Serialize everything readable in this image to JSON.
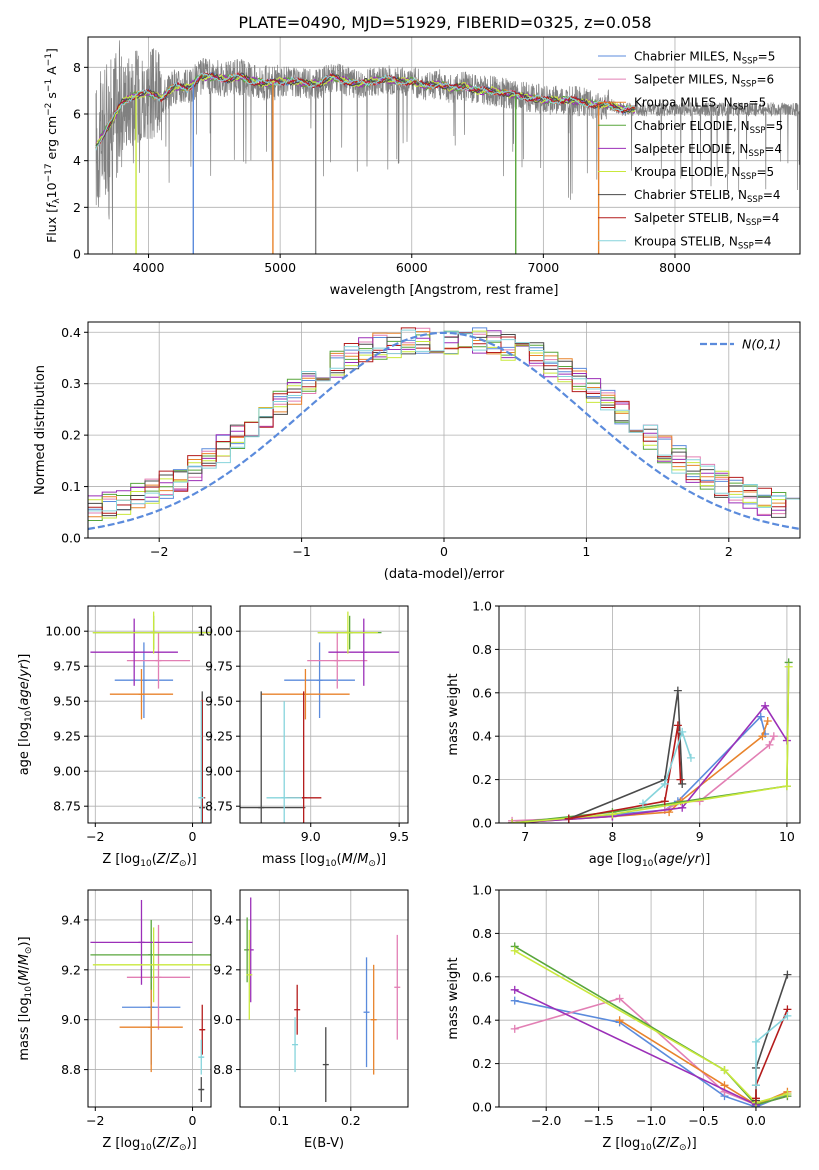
{
  "figure_title": "PLATE=0490, MJD=51929, FIBERID=0325, z=0.058",
  "models": [
    {
      "name": "Chabrier MILES, N$_{SSP}$=5",
      "color": "#5b8bdc"
    },
    {
      "name": "Salpeter MILES, N$_{SSP}$=6",
      "color": "#e27fb4"
    },
    {
      "name": "Kroupa MILES, N$_{SSP}$=5",
      "color": "#e8832c"
    },
    {
      "name": "Chabrier ELODIE, N$_{SSP}$=5",
      "color": "#58a63c"
    },
    {
      "name": "Salpeter ELODIE, N$_{SSP}$=4",
      "color": "#9b2fb8"
    },
    {
      "name": "Kroupa ELODIE, N$_{SSP}$=5",
      "color": "#c9e83c"
    },
    {
      "name": "Chabrier STELIB, N$_{SSP}$=4",
      "color": "#4a4a4a"
    },
    {
      "name": "Salpeter STELIB, N$_{SSP}$=4",
      "color": "#b41c1c"
    },
    {
      "name": "Kroupa STELIB, N$_{SSP}$=4",
      "color": "#86d4dc"
    }
  ],
  "data_color": "#808080",
  "chart_data": [
    {
      "id": "spectrum",
      "type": "line",
      "xlabel": "wavelength [Angstrom, rest frame]",
      "ylabel": "Flux [f_λ 10^-17 erg cm^-2 s^-1 A^-1]",
      "xlim": [
        3540,
        8950
      ],
      "ylim": [
        0,
        9.3
      ],
      "xticks": [
        4000,
        5000,
        6000,
        7000,
        8000
      ],
      "yticks": [
        0,
        2,
        4,
        6,
        8
      ],
      "legend": "upper-right",
      "spectrum_points": [
        [
          3600,
          4.6
        ],
        [
          3700,
          5.5
        ],
        [
          3800,
          6.5
        ],
        [
          3900,
          6.8
        ],
        [
          4000,
          6.9
        ],
        [
          4100,
          6.7
        ],
        [
          4200,
          7.2
        ],
        [
          4300,
          7.1
        ],
        [
          4400,
          7.6
        ],
        [
          4500,
          7.6
        ],
        [
          4600,
          7.5
        ],
        [
          4700,
          7.6
        ],
        [
          4800,
          7.4
        ],
        [
          4900,
          7.3
        ],
        [
          5000,
          7.4
        ],
        [
          5100,
          7.4
        ],
        [
          5200,
          7.3
        ],
        [
          5300,
          7.3
        ],
        [
          5400,
          7.6
        ],
        [
          5500,
          7.4
        ],
        [
          5600,
          7.3
        ],
        [
          5700,
          7.4
        ],
        [
          5800,
          7.5
        ],
        [
          5900,
          7.4
        ],
        [
          6000,
          7.4
        ],
        [
          6100,
          7.2
        ],
        [
          6200,
          7.3
        ],
        [
          6300,
          7.1
        ],
        [
          6400,
          7.2
        ],
        [
          6500,
          7.0
        ],
        [
          6600,
          7.0
        ],
        [
          6700,
          6.9
        ],
        [
          6800,
          6.8
        ],
        [
          6900,
          6.7
        ],
        [
          7000,
          6.6
        ],
        [
          7100,
          6.6
        ],
        [
          7200,
          6.6
        ],
        [
          7300,
          6.5
        ],
        [
          7400,
          6.4
        ],
        [
          7500,
          6.4
        ],
        [
          7600,
          6.2
        ]
      ],
      "model_end_angstrom": 7700,
      "dips_angstrom": [
        3905,
        4340,
        4945,
        5270,
        6790,
        7420
      ]
    },
    {
      "id": "residuals",
      "type": "line",
      "xlabel": "(data-model)/error",
      "ylabel": "Normed distribution",
      "xlim": [
        -2.5,
        2.5
      ],
      "ylim": [
        0,
        0.42
      ],
      "xticks": [
        -2,
        -1,
        0,
        1,
        2
      ],
      "yticks": [
        0.0,
        0.1,
        0.2,
        0.3,
        0.4
      ],
      "legend": "upper-right",
      "gaussian_label": "N(0,1)",
      "gaussian_color": "#5b8bdc",
      "bin_width": 0.1,
      "bins_start": -2.5
    },
    {
      "id": "age-vs-Z",
      "type": "scatter",
      "xlabel": "Z [log10(Z/Z⊙)]",
      "ylabel": "age [log10(age/yr)]",
      "xlim": [
        -2.15,
        0.38
      ],
      "ylim": [
        8.63,
        10.18
      ],
      "xticks": [
        -2,
        0
      ],
      "yticks": [
        8.75,
        9.0,
        9.25,
        9.5,
        9.75,
        10.0
      ],
      "points": [
        {
          "x": -1.0,
          "y": 9.65,
          "xerr": 0.6,
          "yerr": 0.27
        },
        {
          "x": -0.7,
          "y": 9.79,
          "xerr": 0.65,
          "yerr": 0.2
        },
        {
          "x": -1.05,
          "y": 9.55,
          "xerr": 0.65,
          "yerr": 0.18
        },
        {
          "x": -0.8,
          "y": 9.99,
          "xerr": 1.25,
          "yerr": 0.12
        },
        {
          "x": -1.2,
          "y": 9.85,
          "xerr": 0.9,
          "yerr": 0.24
        },
        {
          "x": -0.8,
          "y": 9.99,
          "xerr": 1.25,
          "yerr": 0.15
        },
        {
          "x": 0.2,
          "y": 8.74,
          "xerr": 0.05,
          "yerr": 0.83
        },
        {
          "x": 0.2,
          "y": 8.81,
          "xerr": 0.05,
          "yerr": 0.7
        },
        {
          "x": 0.18,
          "y": 8.81,
          "xerr": 0.05,
          "yerr": 0.69
        }
      ]
    },
    {
      "id": "age-vs-mass",
      "type": "scatter",
      "xlabel": "mass [log10(M/M⊙)]",
      "ylabel": "",
      "xlim": [
        8.6,
        9.55
      ],
      "ylim": [
        8.63,
        10.18
      ],
      "xticks": [
        8.5,
        9.0,
        9.5
      ],
      "yticks": [
        8.75,
        9.0,
        9.25,
        9.5,
        9.75,
        10.0
      ],
      "points": [
        {
          "x": 9.05,
          "y": 9.65,
          "xerr": 0.2,
          "yerr": 0.27
        },
        {
          "x": 9.15,
          "y": 9.79,
          "xerr": 0.17,
          "yerr": 0.2
        },
        {
          "x": 8.97,
          "y": 9.55,
          "xerr": 0.25,
          "yerr": 0.18
        },
        {
          "x": 9.22,
          "y": 9.99,
          "xerr": 0.18,
          "yerr": 0.12
        },
        {
          "x": 9.3,
          "y": 9.85,
          "xerr": 0.2,
          "yerr": 0.24
        },
        {
          "x": 9.21,
          "y": 9.99,
          "xerr": 0.17,
          "yerr": 0.15
        },
        {
          "x": 8.72,
          "y": 8.74,
          "xerr": 0.25,
          "yerr": 0.83
        },
        {
          "x": 8.96,
          "y": 8.81,
          "xerr": 0.1,
          "yerr": 0.76
        },
        {
          "x": 8.85,
          "y": 8.81,
          "xerr": 0.1,
          "yerr": 0.69
        }
      ]
    },
    {
      "id": "weight-vs-age",
      "type": "line",
      "xlabel": "age [log10(age/yr)]",
      "ylabel": "mass weight",
      "xlim": [
        6.7,
        10.15
      ],
      "ylim": [
        0,
        1.0
      ],
      "xticks": [
        7,
        8,
        9,
        10
      ],
      "yticks": [
        0.0,
        0.2,
        0.4,
        0.6,
        0.8,
        1.0
      ],
      "series": [
        {
          "model": 0,
          "x": [
            6.85,
            7.5,
            8.6,
            8.75,
            9.7,
            9.75
          ],
          "y": [
            0.0,
            0.02,
            0.06,
            0.1,
            0.49,
            0.41
          ]
        },
        {
          "model": 1,
          "x": [
            6.85,
            8.0,
            8.6,
            8.8,
            9.0,
            9.8,
            9.85
          ],
          "y": [
            0.01,
            0.03,
            0.06,
            0.1,
            0.1,
            0.36,
            0.4
          ]
        },
        {
          "model": 2,
          "x": [
            6.85,
            8.0,
            8.65,
            8.78,
            9.72,
            9.78
          ],
          "y": [
            0.0,
            0.03,
            0.05,
            0.1,
            0.4,
            0.47
          ]
        },
        {
          "model": 3,
          "x": [
            6.85,
            8.0,
            10.0,
            10.02
          ],
          "y": [
            0.0,
            0.05,
            0.17,
            0.74
          ]
        },
        {
          "model": 4,
          "x": [
            6.85,
            8.0,
            8.8,
            9.75,
            10.0
          ],
          "y": [
            0.0,
            0.03,
            0.07,
            0.54,
            0.38
          ]
        },
        {
          "model": 5,
          "x": [
            6.85,
            8.0,
            10.0,
            10.02
          ],
          "y": [
            0.0,
            0.04,
            0.17,
            0.72
          ]
        },
        {
          "model": 6,
          "x": [
            7.5,
            8.6,
            8.75,
            8.8
          ],
          "y": [
            0.02,
            0.2,
            0.61,
            0.18
          ]
        },
        {
          "model": 7,
          "x": [
            7.5,
            8.6,
            8.75,
            8.78
          ],
          "y": [
            0.02,
            0.1,
            0.45,
            0.2
          ]
        },
        {
          "model": 8,
          "x": [
            8.35,
            8.6,
            8.8,
            8.9
          ],
          "y": [
            0.09,
            0.18,
            0.42,
            0.3
          ]
        }
      ]
    },
    {
      "id": "mass-vs-Z",
      "type": "scatter",
      "xlabel": "Z [log10(Z/Z⊙)]",
      "ylabel": "mass [log10(M/M⊙)]",
      "xlim": [
        -2.15,
        0.38
      ],
      "ylim": [
        8.65,
        9.52
      ],
      "xticks": [
        -2,
        0
      ],
      "yticks": [
        8.8,
        9.0,
        9.2,
        9.4
      ],
      "points": [
        {
          "x": -0.85,
          "y": 9.05,
          "xerr": 0.6,
          "yerr": 0.23
        },
        {
          "x": -0.7,
          "y": 9.17,
          "xerr": 0.65,
          "yerr": 0.21
        },
        {
          "x": -0.85,
          "y": 8.97,
          "xerr": 0.65,
          "yerr": 0.18
        },
        {
          "x": -0.85,
          "y": 9.26,
          "xerr": 1.25,
          "yerr": 0.14
        },
        {
          "x": -1.05,
          "y": 9.31,
          "xerr": 1.05,
          "yerr": 0.17
        },
        {
          "x": -0.8,
          "y": 9.22,
          "xerr": 1.25,
          "yerr": 0.15
        },
        {
          "x": 0.18,
          "y": 8.72,
          "xerr": 0.05,
          "yerr": 0.05
        },
        {
          "x": 0.2,
          "y": 8.96,
          "xerr": 0.05,
          "yerr": 0.1
        },
        {
          "x": 0.18,
          "y": 8.85,
          "xerr": 0.05,
          "yerr": 0.07
        }
      ]
    },
    {
      "id": "mass-vs-EBV",
      "type": "scatter",
      "xlabel": "E(B-V)",
      "ylabel": "",
      "xlim": [
        0.045,
        0.28
      ],
      "ylim": [
        8.65,
        9.52
      ],
      "xticks": [
        0.1,
        0.2
      ],
      "yticks": [
        8.8,
        9.0,
        9.2,
        9.4
      ],
      "points": [
        {
          "x": 0.222,
          "y": 9.03,
          "xerr": 0,
          "yerr": 0.22
        },
        {
          "x": 0.265,
          "y": 9.13,
          "xerr": 0,
          "yerr": 0.21
        },
        {
          "x": 0.232,
          "y": 9.0,
          "xerr": 0,
          "yerr": 0.22
        },
        {
          "x": 0.055,
          "y": 9.28,
          "xerr": 0,
          "yerr": 0.13
        },
        {
          "x": 0.06,
          "y": 9.28,
          "xerr": 0,
          "yerr": 0.21
        },
        {
          "x": 0.058,
          "y": 9.18,
          "xerr": 0,
          "yerr": 0.18
        },
        {
          "x": 0.165,
          "y": 8.82,
          "xerr": 0,
          "yerr": 0.15
        },
        {
          "x": 0.125,
          "y": 9.04,
          "xerr": 0,
          "yerr": 0.1
        },
        {
          "x": 0.122,
          "y": 8.9,
          "xerr": 0,
          "yerr": 0.11
        }
      ]
    },
    {
      "id": "weight-vs-Z",
      "type": "line",
      "xlabel": "Z [log10(Z/Z⊙)]",
      "ylabel": "mass weight",
      "xlim": [
        -2.45,
        0.42
      ],
      "ylim": [
        0,
        1.0
      ],
      "xticks": [
        -2.0,
        -1.5,
        -1.0,
        -0.5,
        0.0
      ],
      "yticks": [
        0.0,
        0.2,
        0.4,
        0.6,
        0.8,
        1.0
      ],
      "series": [
        {
          "model": 0,
          "x": [
            -2.3,
            -1.3,
            -0.3,
            0.0,
            0.3
          ],
          "y": [
            0.49,
            0.39,
            0.05,
            0.0,
            0.06
          ]
        },
        {
          "model": 1,
          "x": [
            -2.3,
            -1.3,
            -0.3,
            0.0,
            0.3
          ],
          "y": [
            0.36,
            0.5,
            0.07,
            0.01,
            0.05
          ]
        },
        {
          "model": 2,
          "x": [
            -1.3,
            -0.3,
            0.0,
            0.3
          ],
          "y": [
            0.4,
            0.1,
            0.01,
            0.07
          ]
        },
        {
          "model": 3,
          "x": [
            -2.3,
            -0.3,
            0.0,
            0.3
          ],
          "y": [
            0.74,
            0.17,
            0.01,
            0.05
          ]
        },
        {
          "model": 4,
          "x": [
            -2.3,
            0.0
          ],
          "y": [
            0.54,
            0.01
          ]
        },
        {
          "model": 5,
          "x": [
            -2.3,
            -0.3,
            0.0,
            0.3
          ],
          "y": [
            0.72,
            0.17,
            0.02,
            0.06
          ]
        },
        {
          "model": 6,
          "x": [
            0.0,
            0.0,
            0.3
          ],
          "y": [
            0.03,
            0.18,
            0.61
          ]
        },
        {
          "model": 7,
          "x": [
            0.0,
            0.0,
            0.3
          ],
          "y": [
            0.04,
            0.1,
            0.45
          ]
        },
        {
          "model": 8,
          "x": [
            0.0,
            0.0,
            0.3
          ],
          "y": [
            0.1,
            0.3,
            0.42
          ]
        }
      ]
    }
  ]
}
